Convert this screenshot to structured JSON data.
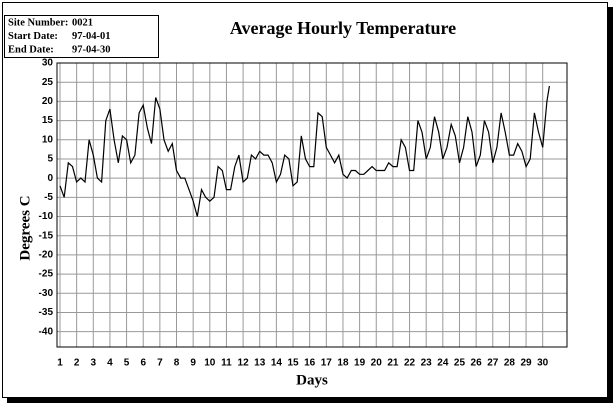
{
  "chart_data": {
    "type": "line",
    "title": "Average Hourly Temperature",
    "info": [
      {
        "label": "Site Number:",
        "value": "0021"
      },
      {
        "label": "Start Date:",
        "value": "97-04-01"
      },
      {
        "label": "End Date:",
        "value": "97-04-30"
      }
    ],
    "xlabel": "Days",
    "ylabel": "Degrees C",
    "color": "#000000",
    "grid": true,
    "xlim": [
      0.82,
      31.46
    ],
    "ylim": [
      -44,
      30
    ],
    "xticks": [
      1,
      2,
      3,
      4,
      5,
      6,
      7,
      8,
      9,
      10,
      11,
      12,
      13,
      14,
      15,
      16,
      17,
      18,
      19,
      20,
      21,
      22,
      23,
      24,
      25,
      26,
      27,
      28,
      29,
      30
    ],
    "yticks": [
      30,
      25,
      20,
      15,
      10,
      5,
      0,
      -5,
      -10,
      -15,
      -20,
      -25,
      -30,
      -35,
      -40
    ],
    "x": [
      1,
      1.25,
      1.5,
      1.75,
      2,
      2.25,
      2.5,
      2.75,
      3,
      3.25,
      3.5,
      3.75,
      4,
      4.25,
      4.5,
      4.75,
      5,
      5.25,
      5.5,
      5.75,
      6,
      6.25,
      6.5,
      6.75,
      7,
      7.25,
      7.5,
      7.75,
      8,
      8.25,
      8.5,
      8.75,
      9,
      9.25,
      9.5,
      9.75,
      10,
      10.25,
      10.5,
      10.75,
      11,
      11.25,
      11.5,
      11.75,
      12,
      12.25,
      12.5,
      12.75,
      13,
      13.25,
      13.5,
      13.75,
      14,
      14.25,
      14.5,
      14.75,
      15,
      15.25,
      15.5,
      15.75,
      16,
      16.25,
      16.5,
      16.75,
      17,
      17.25,
      17.5,
      17.75,
      18,
      18.25,
      18.5,
      18.75,
      19,
      19.25,
      19.5,
      19.75,
      20,
      20.25,
      20.5,
      20.75,
      21,
      21.25,
      21.5,
      21.75,
      22,
      22.25,
      22.5,
      22.75,
      23,
      23.25,
      23.5,
      23.75,
      24,
      24.25,
      24.5,
      24.75,
      25,
      25.25,
      25.5,
      25.75,
      26,
      26.25,
      26.5,
      26.75,
      27,
      27.25,
      27.5,
      27.75,
      28,
      28.25,
      28.5,
      28.75,
      29,
      29.25,
      29.5,
      29.75,
      30,
      30.25,
      30.4
    ],
    "values": [
      -2,
      -5,
      4,
      3,
      -1,
      0,
      -1,
      10,
      6,
      0,
      -1,
      15,
      18,
      10,
      4,
      11,
      10,
      4,
      6,
      17,
      19,
      13,
      9,
      21,
      18,
      10,
      7,
      9,
      2,
      0,
      0,
      -3,
      -6,
      -10,
      -3,
      -5,
      -6,
      -5,
      3,
      2,
      -3,
      -3,
      3,
      6,
      -1,
      0,
      6,
      5,
      7,
      6,
      6,
      4,
      -1,
      1,
      6,
      5,
      -2,
      -1,
      11,
      5,
      3,
      3,
      17,
      16,
      8,
      6,
      4,
      6,
      1,
      0,
      2,
      2,
      1,
      1,
      2,
      3,
      2,
      2,
      2,
      4,
      3,
      3,
      10,
      8,
      2,
      2,
      15,
      12,
      5,
      8,
      16,
      12,
      5,
      8,
      14,
      11,
      4,
      8,
      16,
      12,
      3,
      6,
      15,
      12,
      4,
      8,
      17,
      12,
      6,
      6,
      9,
      7,
      3,
      5,
      17,
      12,
      8,
      20,
      24
    ]
  }
}
